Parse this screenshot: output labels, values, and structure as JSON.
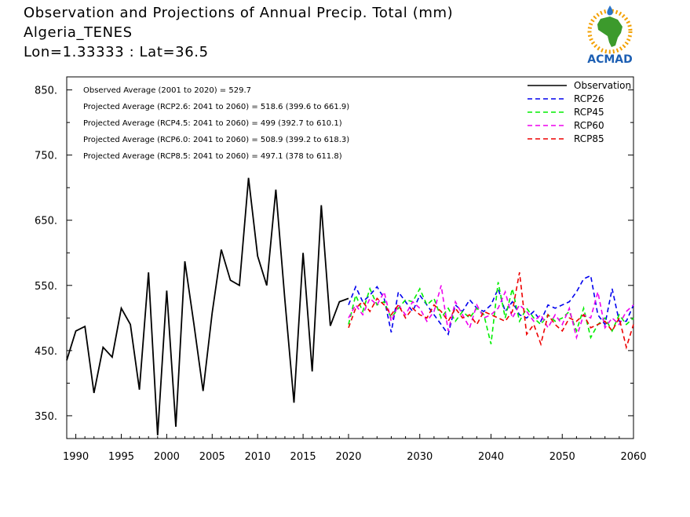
{
  "header": {
    "title": "Observation and Projections of Annual Precip. Total (mm)",
    "subtitle": "Algeria_TENES",
    "coords": "Lon=1.33333 : Lat=36.5",
    "logo_text": "ACMAD"
  },
  "chart_data": {
    "type": "line",
    "title": "Observation and Projections of Annual Precip. Total (mm)",
    "xlim": [
      1989,
      2060
    ],
    "ylim": [
      315,
      870
    ],
    "y_ticks": [
      350,
      450,
      550,
      650,
      750,
      850
    ],
    "y_tick_labels": [
      "350.",
      "450.",
      "550.",
      "650.",
      "750.",
      "850."
    ],
    "x_ticks": [
      1990,
      1995,
      2000,
      2005,
      2010,
      2015,
      2020,
      2030,
      2040,
      2050,
      2060
    ],
    "x_tick_labels": [
      "1990",
      "1995",
      "2000",
      "2005",
      "2010",
      "2015",
      "2020",
      "2030",
      "2040",
      "2050",
      "2060"
    ],
    "x_scale_note": "piecewise",
    "stats": [
      "Observed Average (2001 to 2020) = 529.7",
      "Projected Average (RCP2.6: 2041 to 2060) = 518.6 (399.6 to 661.9)",
      "Projected Average (RCP4.5: 2041 to 2060) = 499 (392.7 to 610.1)",
      "Projected Average (RCP6.0: 2041 to 2060) = 508.9 (399.2 to 618.3)",
      "Projected Average (RCP8.5: 2041 to 2060) = 497.1 (378 to 611.8)"
    ],
    "legend": [
      {
        "name": "Observation",
        "color": "#000000",
        "dash": "solid"
      },
      {
        "name": "RCP26",
        "color": "#0000ee",
        "dash": "dashed"
      },
      {
        "name": "RCP45",
        "color": "#00ee00",
        "dash": "dashed"
      },
      {
        "name": "RCP60",
        "color": "#ee00ee",
        "dash": "dashed"
      },
      {
        "name": "RCP85",
        "color": "#ee0000",
        "dash": "dashed"
      }
    ],
    "legend_position": "top-right",
    "series": [
      {
        "name": "Observation",
        "color": "#000000",
        "x": [
          1989,
          1990,
          1991,
          1992,
          1993,
          1994,
          1995,
          1996,
          1997,
          1998,
          1999,
          2000,
          2001,
          2002,
          2003,
          2004,
          2005,
          2006,
          2007,
          2008,
          2009,
          2010,
          2011,
          2012,
          2013,
          2014,
          2015,
          2016,
          2017,
          2018,
          2019,
          2020
        ],
        "values": [
          435,
          480,
          487,
          385,
          455,
          440,
          515,
          490,
          390,
          570,
          320,
          542,
          333,
          587,
          490,
          388,
          508,
          605,
          558,
          550,
          715,
          595,
          550,
          697,
          528,
          370,
          600,
          418,
          673,
          488,
          525,
          530
        ]
      },
      {
        "name": "RCP26",
        "color": "#0000ee",
        "x": [
          2020,
          2021,
          2022,
          2023,
          2024,
          2025,
          2026,
          2027,
          2028,
          2029,
          2030,
          2031,
          2032,
          2033,
          2034,
          2035,
          2036,
          2037,
          2038,
          2039,
          2040,
          2041,
          2042,
          2043,
          2044,
          2045,
          2046,
          2047,
          2048,
          2049,
          2050,
          2051,
          2052,
          2053,
          2054,
          2055,
          2056,
          2057,
          2058,
          2059,
          2060
        ],
        "values": [
          520,
          548,
          525,
          535,
          548,
          530,
          478,
          540,
          525,
          510,
          535,
          520,
          505,
          490,
          475,
          520,
          510,
          528,
          515,
          510,
          520,
          545,
          510,
          525,
          505,
          500,
          510,
          495,
          520,
          515,
          520,
          525,
          540,
          560,
          565,
          505,
          490,
          545,
          495,
          495,
          520
        ]
      },
      {
        "name": "RCP45",
        "color": "#00ee00",
        "x": [
          2020,
          2021,
          2022,
          2023,
          2024,
          2025,
          2026,
          2027,
          2028,
          2029,
          2030,
          2031,
          2032,
          2033,
          2034,
          2035,
          2036,
          2037,
          2038,
          2039,
          2040,
          2041,
          2042,
          2043,
          2044,
          2045,
          2046,
          2047,
          2048,
          2049,
          2050,
          2051,
          2052,
          2053,
          2054,
          2055,
          2056,
          2057,
          2058,
          2059,
          2060
        ],
        "values": [
          490,
          535,
          510,
          545,
          520,
          525,
          500,
          515,
          528,
          525,
          545,
          520,
          530,
          500,
          515,
          495,
          510,
          500,
          515,
          505,
          460,
          555,
          500,
          545,
          495,
          515,
          500,
          490,
          505,
          495,
          500,
          510,
          480,
          515,
          470,
          490,
          500,
          480,
          505,
          490,
          500
        ]
      },
      {
        "name": "RCP60",
        "color": "#ee00ee",
        "x": [
          2020,
          2021,
          2022,
          2023,
          2024,
          2025,
          2026,
          2027,
          2028,
          2029,
          2030,
          2031,
          2032,
          2033,
          2034,
          2035,
          2036,
          2037,
          2038,
          2039,
          2040,
          2041,
          2042,
          2043,
          2044,
          2045,
          2046,
          2047,
          2048,
          2049,
          2050,
          2051,
          2052,
          2053,
          2054,
          2055,
          2056,
          2057,
          2058,
          2059,
          2060
        ],
        "values": [
          500,
          520,
          505,
          530,
          520,
          540,
          495,
          520,
          505,
          525,
          515,
          495,
          510,
          550,
          480,
          525,
          505,
          485,
          520,
          500,
          505,
          515,
          540,
          500,
          520,
          510,
          495,
          505,
          485,
          505,
          490,
          515,
          470,
          505,
          500,
          540,
          485,
          500,
          490,
          510,
          520
        ]
      },
      {
        "name": "RCP85",
        "color": "#ee0000",
        "x": [
          2020,
          2021,
          2022,
          2023,
          2024,
          2025,
          2026,
          2027,
          2028,
          2029,
          2030,
          2031,
          2032,
          2033,
          2034,
          2035,
          2036,
          2037,
          2038,
          2039,
          2040,
          2041,
          2042,
          2043,
          2044,
          2045,
          2046,
          2047,
          2048,
          2049,
          2050,
          2051,
          2052,
          2053,
          2054,
          2055,
          2056,
          2057,
          2058,
          2059,
          2060
        ],
        "values": [
          485,
          515,
          525,
          510,
          530,
          520,
          505,
          520,
          500,
          515,
          505,
          500,
          520,
          510,
          495,
          515,
          500,
          505,
          490,
          510,
          505,
          500,
          495,
          510,
          570,
          475,
          490,
          460,
          505,
          490,
          480,
          500,
          495,
          505,
          485,
          490,
          495,
          480,
          500,
          455,
          490
        ]
      }
    ]
  }
}
